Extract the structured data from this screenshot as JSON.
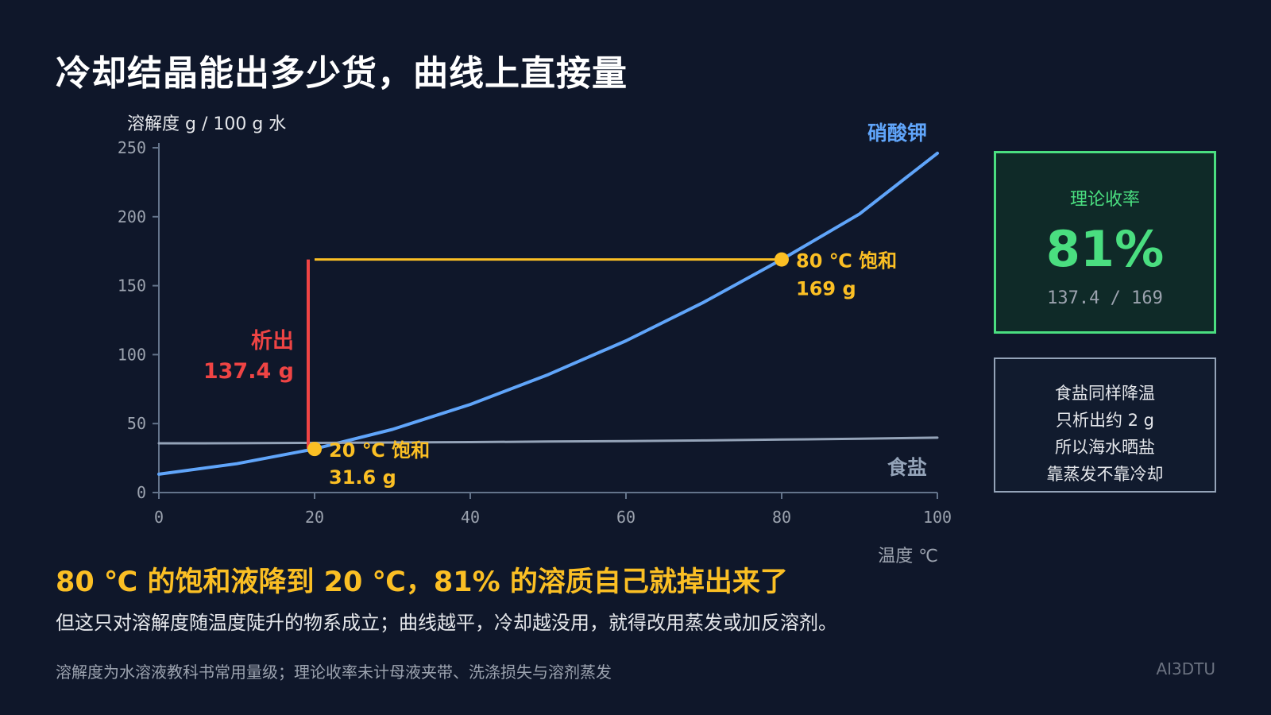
{
  "title": "冷却结晶能出多少货，曲线上直接量",
  "chart_data": {
    "type": "line",
    "ylabel": "溶解度 g / 100 g 水",
    "xlabel": "温度 ℃",
    "xlim": [
      0,
      100
    ],
    "ylim": [
      0,
      250
    ],
    "x_ticks": [
      0,
      20,
      40,
      60,
      80,
      100
    ],
    "y_ticks": [
      0,
      50,
      100,
      150,
      200,
      250
    ],
    "grid": false,
    "series": [
      {
        "name": "硝酸钾",
        "color": "#60a5fa",
        "x": [
          0,
          10,
          20,
          30,
          40,
          50,
          60,
          70,
          80,
          90,
          100
        ],
        "y": [
          13.3,
          20.9,
          31.6,
          45.8,
          63.9,
          85.5,
          110,
          138,
          169,
          202,
          246
        ]
      },
      {
        "name": "食盐",
        "color": "#94a3b8",
        "x": [
          0,
          10,
          20,
          30,
          40,
          50,
          60,
          70,
          80,
          90,
          100
        ],
        "y": [
          35.7,
          35.8,
          36.0,
          36.3,
          36.6,
          37.0,
          37.3,
          37.8,
          38.4,
          39.0,
          39.8
        ]
      }
    ],
    "annotations": {
      "point_high": {
        "x": 80,
        "y": 169,
        "label": "80 ℃ 饱和",
        "value_label": "169 g"
      },
      "point_low": {
        "x": 20,
        "y": 31.6,
        "label": "20 ℃ 饱和",
        "value_label": "31.6 g"
      },
      "precipitate": {
        "label": "析出",
        "value_label": "137.4 g",
        "value": 137.4
      },
      "colors": {
        "highlight": "#fbbf24",
        "precipitate": "#ef4444"
      }
    }
  },
  "yield_card": {
    "label": "理论收率",
    "value": "81%",
    "ratio": "137.4 / 169"
  },
  "salt_card": {
    "lines": [
      "食盐同样降温",
      "只析出约 2 g",
      "所以海水晒盐",
      "靠蒸发不靠冷却"
    ]
  },
  "headline": "80 ℃ 的饱和液降到 20 ℃，81% 的溶质自己就掉出来了",
  "subline": "但这只对溶解度随温度陡升的物系成立；曲线越平，冷却越没用，就得改用蒸发或加反溶剂。",
  "footnote": "溶解度为水溶液教科书常用量级；理论收率未计母液夹带、洗涤损失与溶剂蒸发",
  "brand": "AI3DTU"
}
